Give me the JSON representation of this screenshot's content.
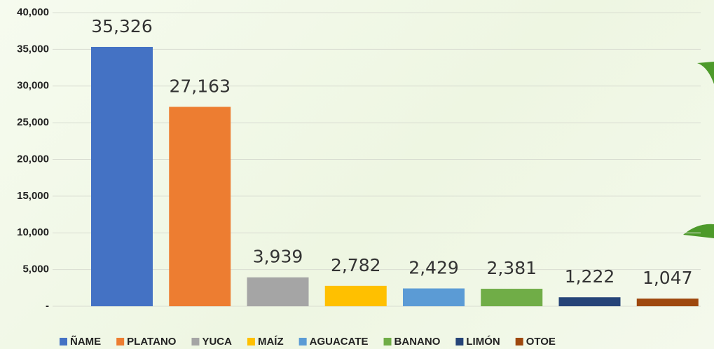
{
  "chart_data": {
    "type": "bar",
    "series": [
      {
        "name": "ÑAME",
        "color": "#4472c4",
        "values": [
          35326
        ],
        "value_labels": [
          "35,326"
        ]
      },
      {
        "name": "PLATANO",
        "color": "#ed7d31",
        "values": [
          27163
        ],
        "value_labels": [
          "27,163"
        ]
      },
      {
        "name": "YUCA",
        "color": "#a5a5a5",
        "values": [
          3939
        ],
        "value_labels": [
          "3,939"
        ]
      },
      {
        "name": "MAÍZ",
        "color": "#ffc000",
        "values": [
          2782
        ],
        "value_labels": [
          "2,782"
        ]
      },
      {
        "name": "AGUACATE",
        "color": "#5b9bd5",
        "values": [
          2429
        ],
        "value_labels": [
          "2,429"
        ]
      },
      {
        "name": "BANANO",
        "color": "#70ad47",
        "values": [
          2381
        ],
        "value_labels": [
          "2,381"
        ]
      },
      {
        "name": "LIMÓN",
        "color": "#264478",
        "values": [
          1222
        ],
        "value_labels": [
          "1,222"
        ]
      },
      {
        "name": "OTOE",
        "color": "#9e480e",
        "values": [
          1047
        ],
        "value_labels": [
          "1,047"
        ]
      }
    ],
    "ylim": [
      0,
      40000
    ],
    "yticks": [
      {
        "value": 0,
        "label": "-"
      },
      {
        "value": 5000,
        "label": "5,000"
      },
      {
        "value": 10000,
        "label": "10,000"
      },
      {
        "value": 15000,
        "label": "15,000"
      },
      {
        "value": 20000,
        "label": "20,000"
      },
      {
        "value": 25000,
        "label": "25,000"
      },
      {
        "value": 30000,
        "label": "30,000"
      },
      {
        "value": 35000,
        "label": "35,000"
      },
      {
        "value": 40000,
        "label": "40,000"
      }
    ],
    "grid": true,
    "legend": "bottom"
  }
}
